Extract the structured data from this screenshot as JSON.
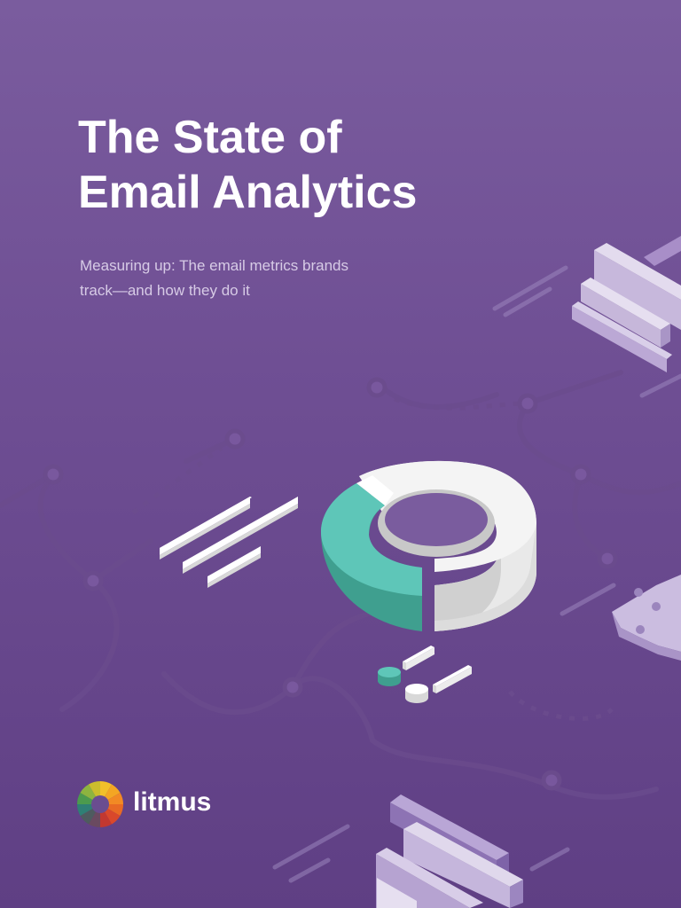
{
  "page": {
    "title_lines": [
      "The State of",
      "Email Analytics"
    ],
    "subtitle_lines": [
      "Measuring up: The email metrics brands",
      "track—and how they do it"
    ],
    "brand": "litmus"
  },
  "icons": {
    "logo": "litmus-color-wheel-icon",
    "chart": "donut-chart-illustration"
  },
  "colors": {
    "background_top": "#7a5c9e",
    "background_bottom": "#5f3f84",
    "title": "#ffffff",
    "subtitle": "#d7cbe6",
    "donut_teal": "#5bc4b7",
    "donut_light": "#e5e5e5"
  }
}
